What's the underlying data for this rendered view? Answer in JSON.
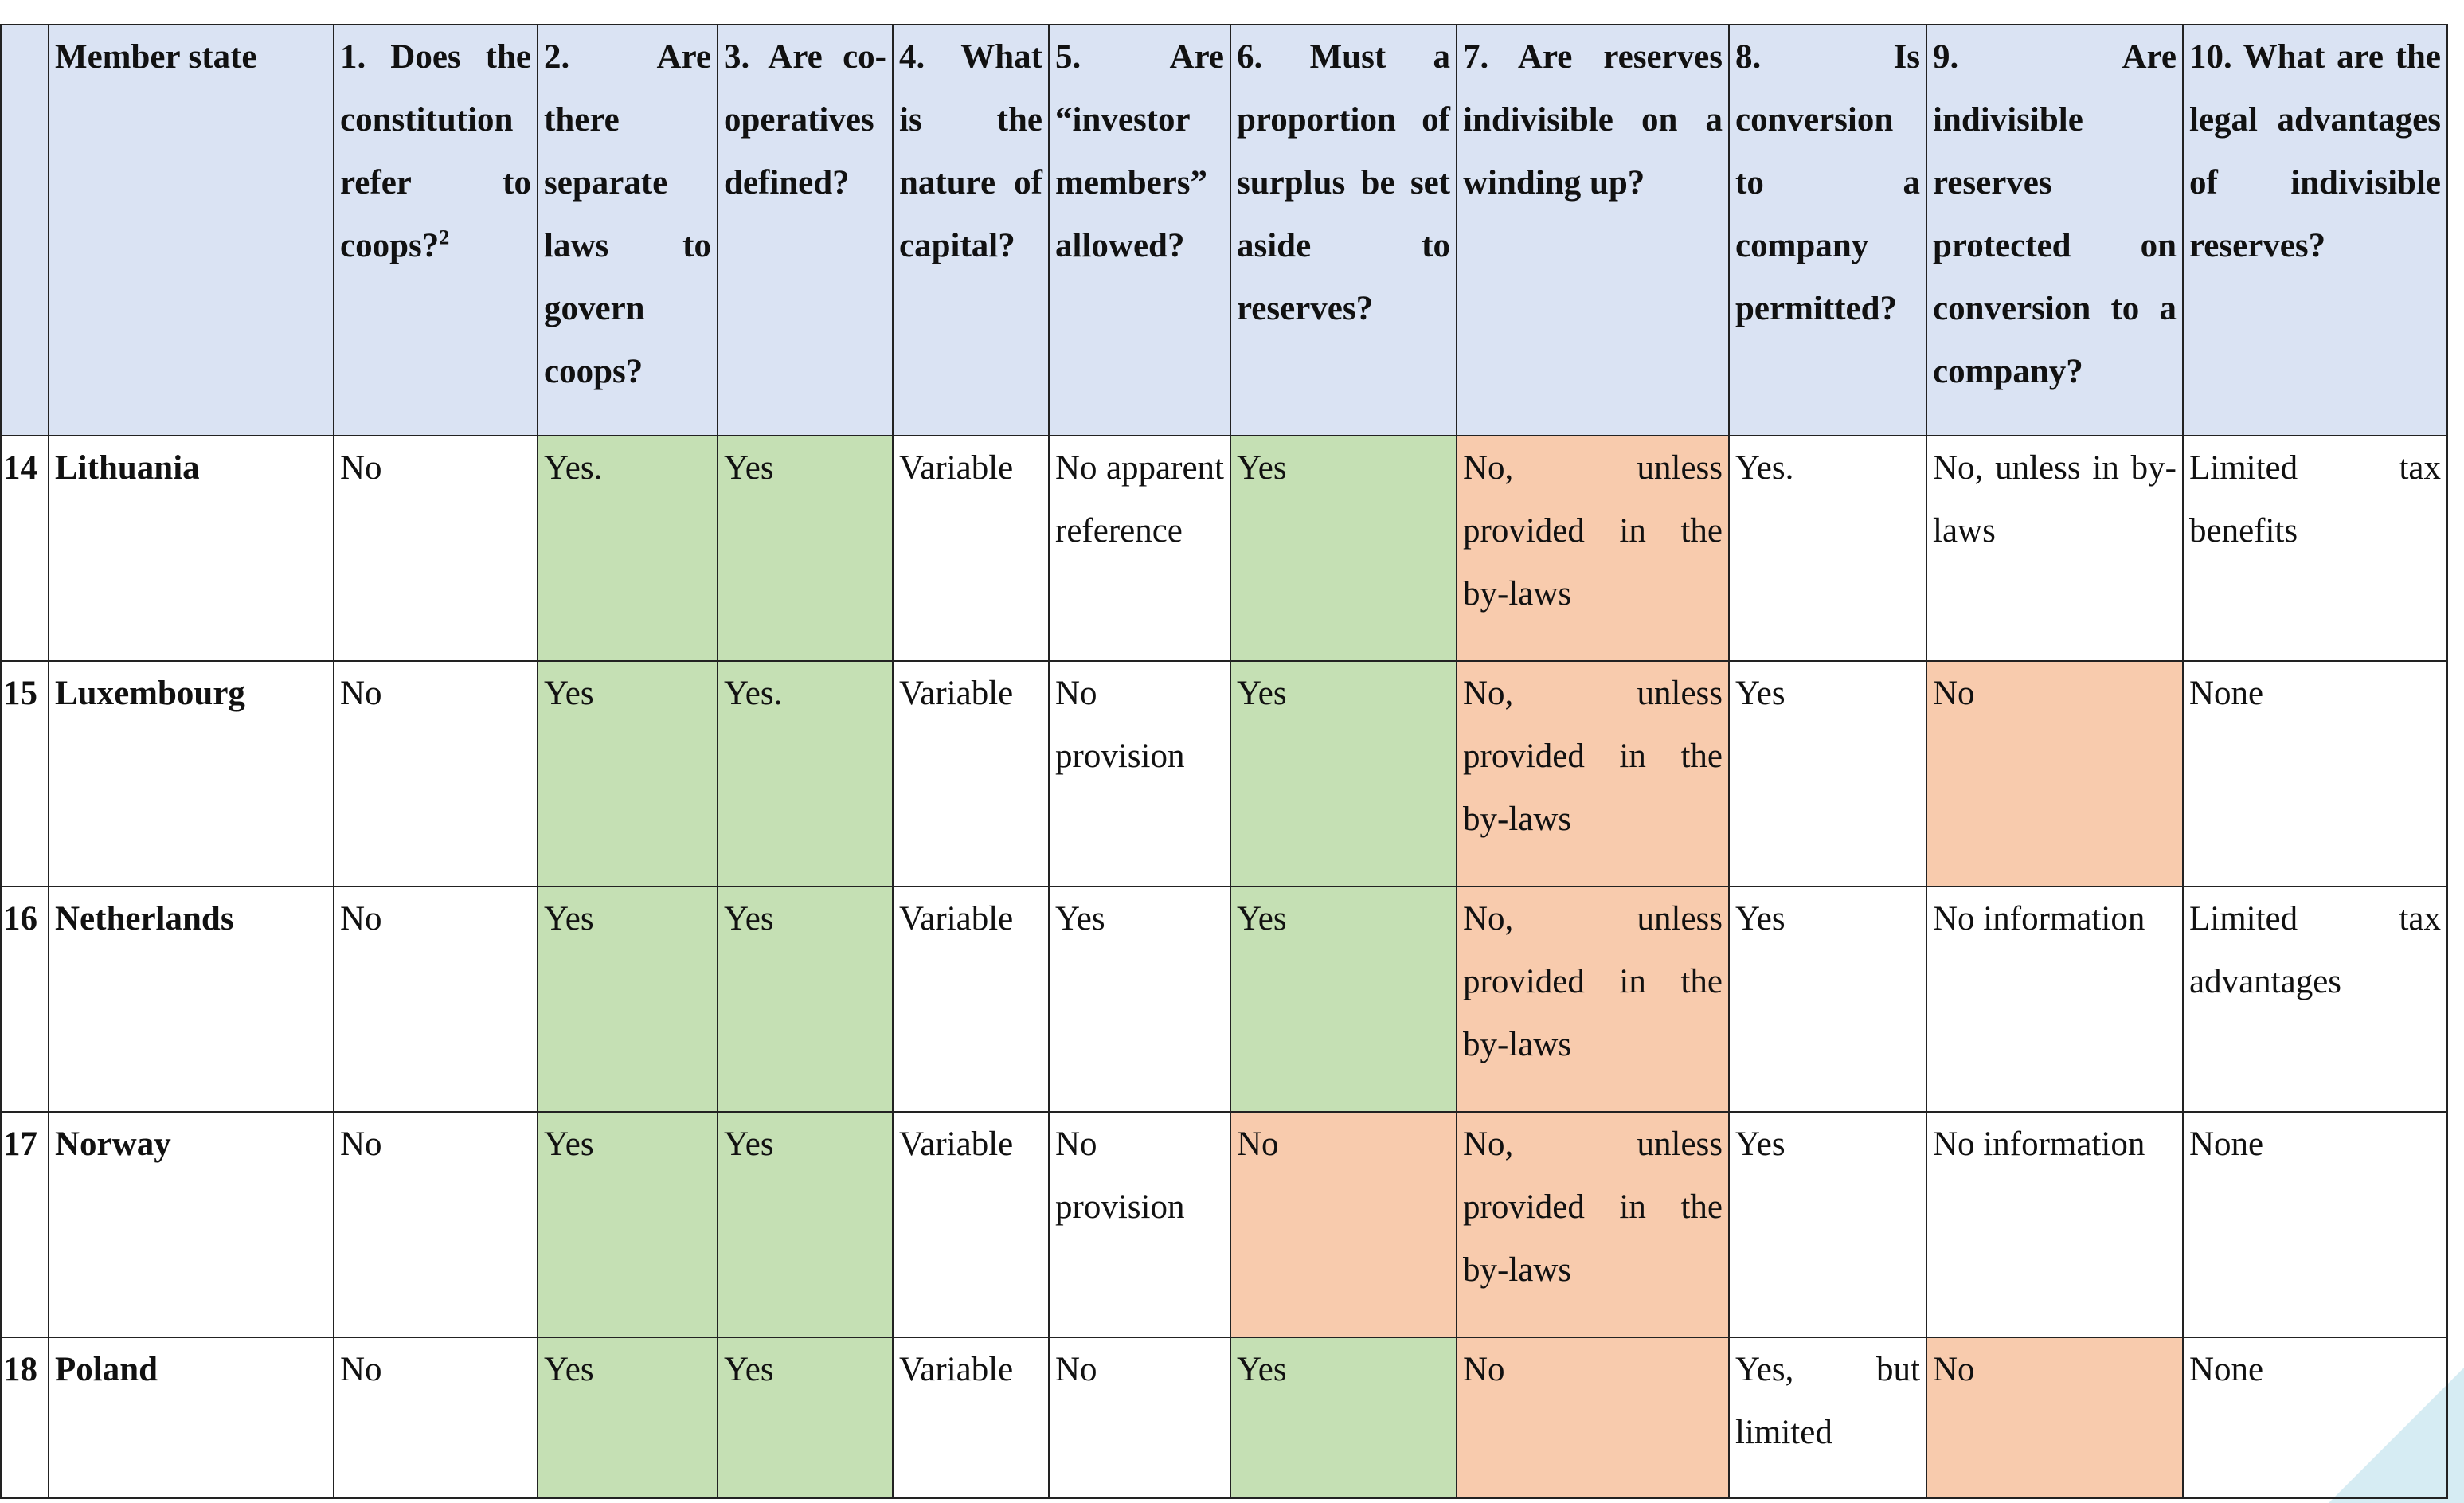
{
  "headers": [
    "",
    "Member state",
    "1. Does the constitution refer to coops?",
    "2. Are there separate laws to govern coops?",
    "3. Are co-operatives defined?",
    "4. What is the nature of capital?",
    "5. Are “investor members” allowed?",
    "6. Must a proportion of surplus be set aside to reserves?",
    "7. Are reserves indivisible on a winding up?",
    "8. Is conversion to a company permitted?",
    "9. Are indivisible reserves protected on conversion to a company?",
    "10. What are the legal advantages of indivisible reserves?"
  ],
  "footnote_marker": "2",
  "rows": [
    {
      "num": "14",
      "state": "Lithuania",
      "cells": [
        "No",
        "Yes.",
        "Yes",
        "Variable",
        "No apparent reference",
        "Yes",
        "No, unless provided in the by-laws",
        "Yes.",
        "No, unless in by-laws",
        "Limited tax benefits"
      ]
    },
    {
      "num": "15",
      "state": "Luxembourg",
      "cells": [
        "No",
        "Yes",
        "Yes.",
        "Variable",
        "No provision",
        "Yes",
        "No, unless provided in the by-laws",
        "Yes",
        "No",
        "None"
      ]
    },
    {
      "num": "16",
      "state": "Netherlands",
      "cells": [
        "No",
        "Yes",
        "Yes",
        "Variable",
        "Yes",
        "Yes",
        "No, unless provided in the by-laws",
        "Yes",
        "No information",
        "Limited tax advantages"
      ]
    },
    {
      "num": "17",
      "state": "Norway",
      "cells": [
        "No",
        "Yes",
        "Yes",
        "Variable",
        "No provision",
        "No",
        "No, unless provided in the by-laws",
        "Yes",
        "No information",
        "None"
      ]
    },
    {
      "num": "18",
      "state": "Poland",
      "cells": [
        "No",
        "Yes",
        "Yes",
        "Variable",
        "No",
        "Yes",
        "No",
        "Yes, but limited",
        "No",
        "None"
      ]
    }
  ],
  "colors": {
    "header_bg": "#dae3f3",
    "positive": "#c5e0b4",
    "negative": "#f8cbad"
  }
}
